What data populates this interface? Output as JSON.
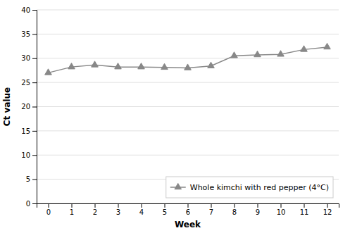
{
  "chart_data": {
    "type": "line",
    "x": [
      0,
      1,
      2,
      3,
      4,
      5,
      6,
      7,
      8,
      9,
      10,
      11,
      12
    ],
    "series": [
      {
        "name": "Whole kimchi with red pepper (4°C)",
        "color": "#888888",
        "marker": "triangle",
        "values": [
          27.0,
          28.2,
          28.6,
          28.2,
          28.2,
          28.1,
          28.0,
          28.4,
          30.5,
          30.7,
          30.8,
          31.8,
          32.3
        ]
      }
    ],
    "xlabel": "Week",
    "ylabel": "Ct value",
    "xlim": [
      -0.5,
      12.5
    ],
    "xticks": [
      0,
      1,
      2,
      3,
      4,
      5,
      6,
      7,
      8,
      9,
      10,
      11,
      12
    ],
    "ylim": [
      0,
      40
    ],
    "yticks": [
      0,
      5,
      10,
      15,
      20,
      25,
      30,
      35,
      40
    ],
    "grid": true,
    "legend": "lower right"
  }
}
